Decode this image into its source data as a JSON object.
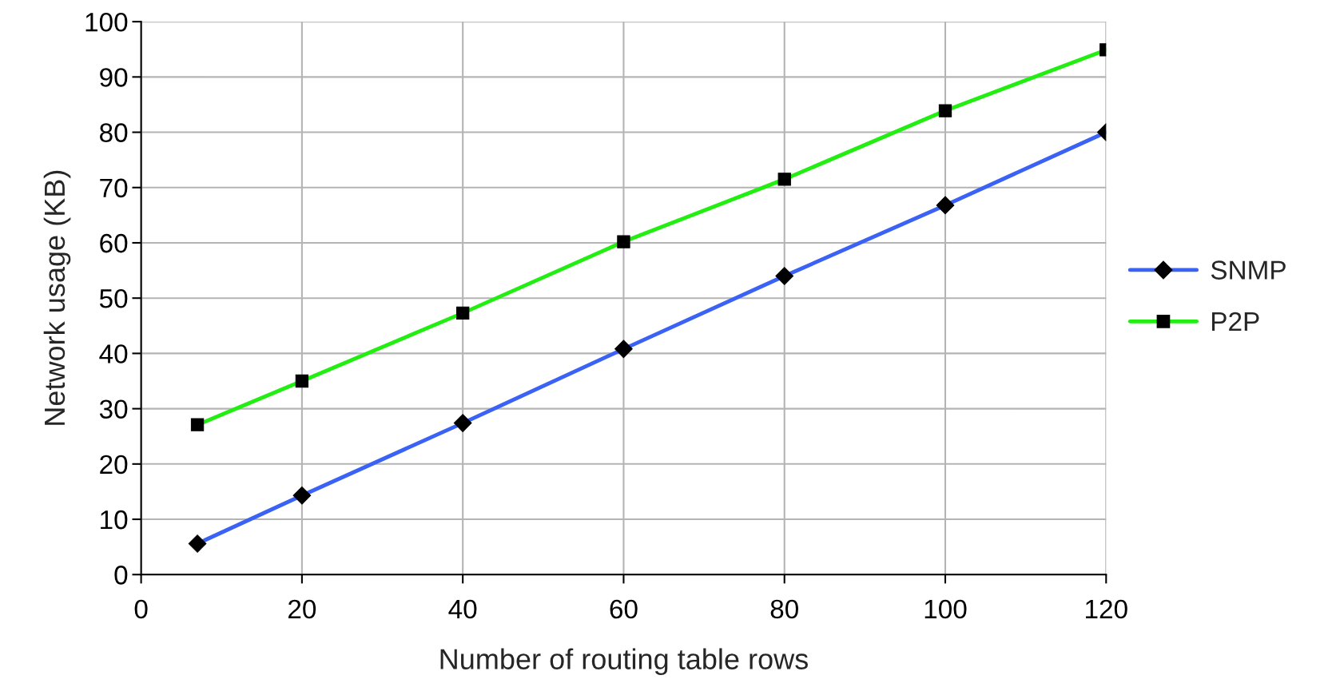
{
  "chart_data": {
    "type": "line",
    "xlabel": "Number of routing table rows",
    "ylabel": "Network usage (KB)",
    "x": [
      7,
      20,
      40,
      60,
      80,
      100,
      120
    ],
    "series": [
      {
        "name": "SNMP",
        "color": "#3a62f5",
        "marker": "diamond",
        "values": [
          5.6,
          14.3,
          27.4,
          40.8,
          54.0,
          66.8,
          80.0
        ]
      },
      {
        "name": "P2P",
        "color": "#22ee11",
        "marker": "square",
        "values": [
          27.1,
          35.0,
          47.3,
          60.2,
          71.5,
          83.9,
          94.9
        ]
      }
    ],
    "xlim": [
      0,
      120
    ],
    "xticks": [
      0,
      20,
      40,
      60,
      80,
      100,
      120
    ],
    "ylim": [
      0,
      100
    ],
    "yticks": [
      0,
      10,
      20,
      30,
      40,
      50,
      60,
      70,
      80,
      90,
      100
    ],
    "grid": true,
    "legend": "right",
    "line_style": "solid"
  }
}
